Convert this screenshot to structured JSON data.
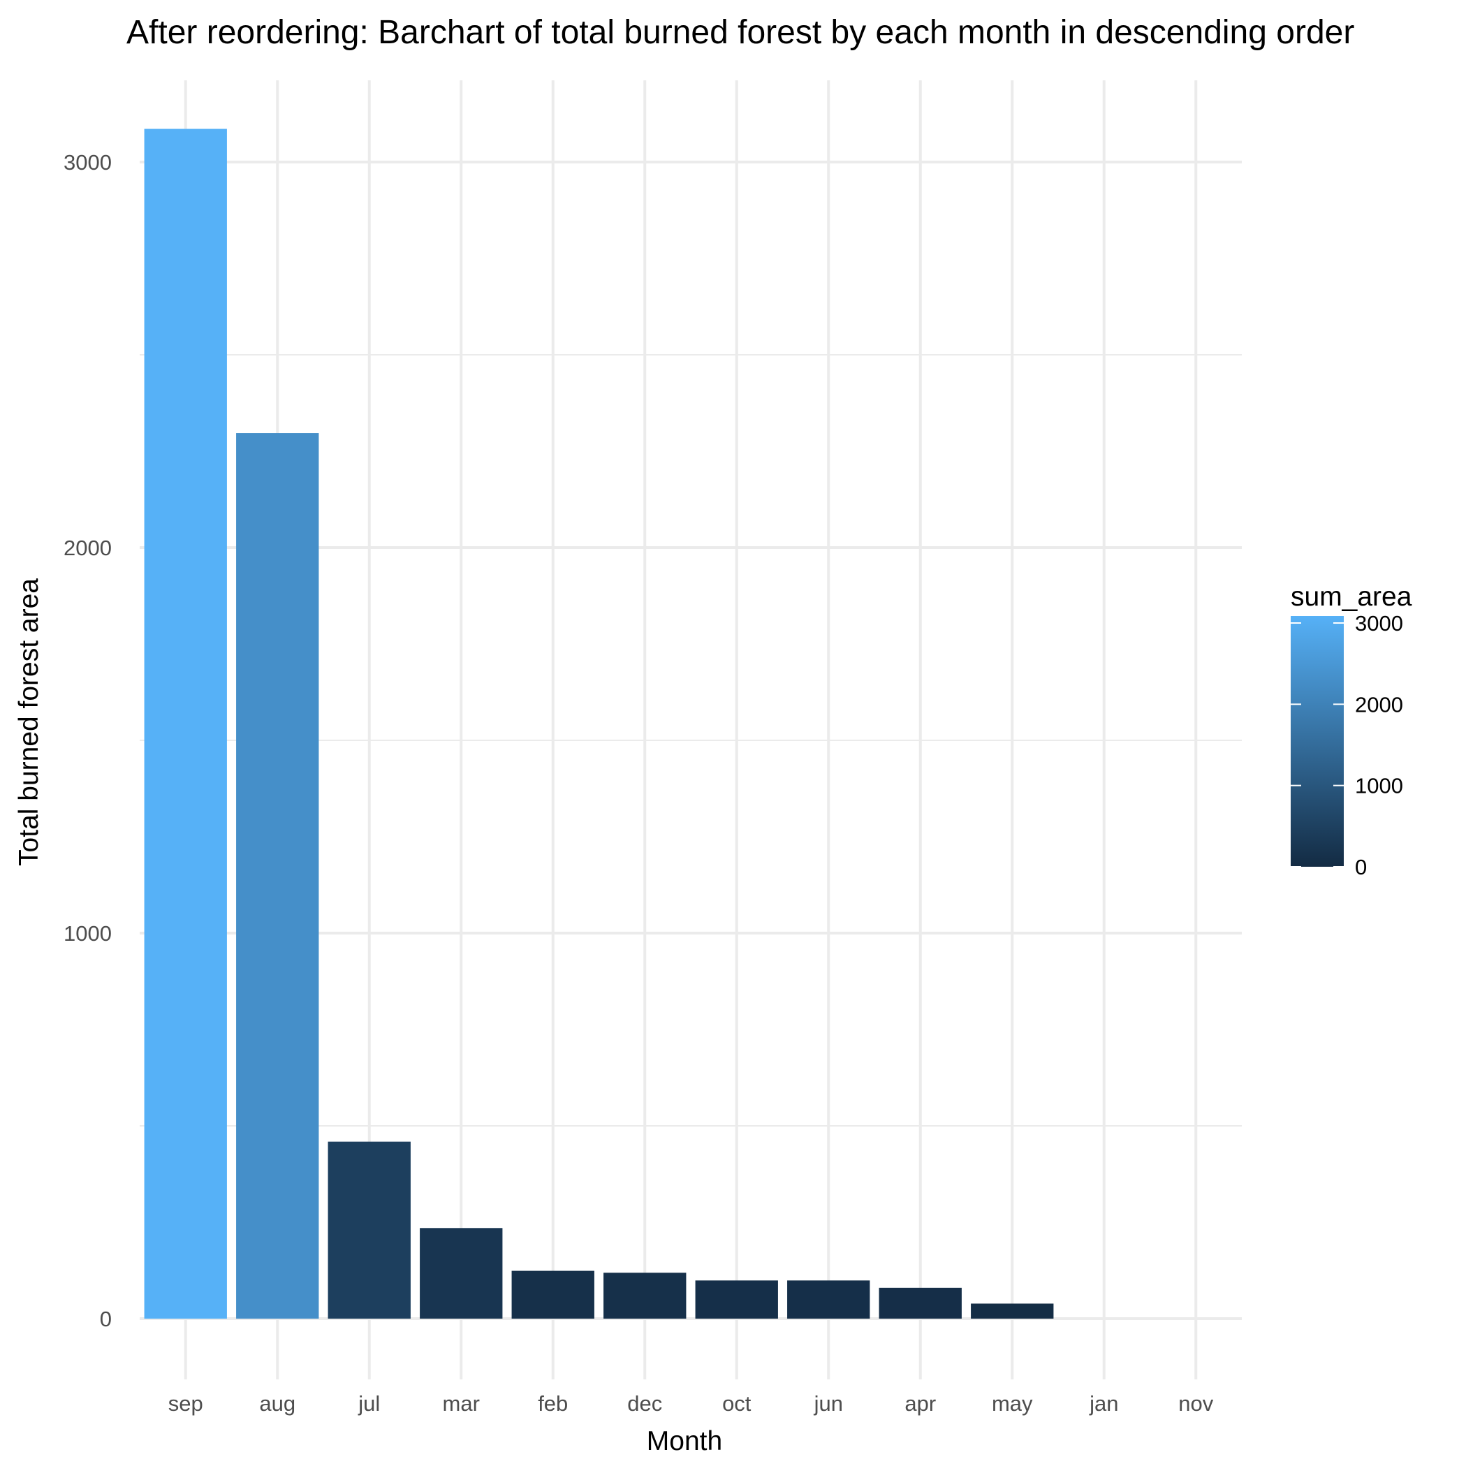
{
  "chart_data": {
    "type": "bar",
    "title": "After reordering: Barchart of total burned forest by each month in descending order",
    "xlabel": "Month",
    "ylabel": "Total burned forest area",
    "categories": [
      "sep",
      "aug",
      "jul",
      "mar",
      "feb",
      "dec",
      "oct",
      "jun",
      "apr",
      "may",
      "jan",
      "nov"
    ],
    "values": [
      3086,
      2297,
      459,
      235,
      124,
      119,
      99,
      99,
      80,
      39,
      0,
      0
    ],
    "ylim": [
      0,
      3086
    ],
    "yticks": [
      0,
      1000,
      2000,
      3000
    ],
    "grid": true,
    "fill": {
      "variable": "sum_area",
      "low_color": "#132B43",
      "high_color": "#56B1F7"
    },
    "legend": {
      "title": "sum_area",
      "position": "right",
      "breaks": [
        0,
        1000,
        2000,
        3000
      ],
      "labels": [
        "0",
        "1000",
        "2000",
        "3000"
      ]
    }
  }
}
